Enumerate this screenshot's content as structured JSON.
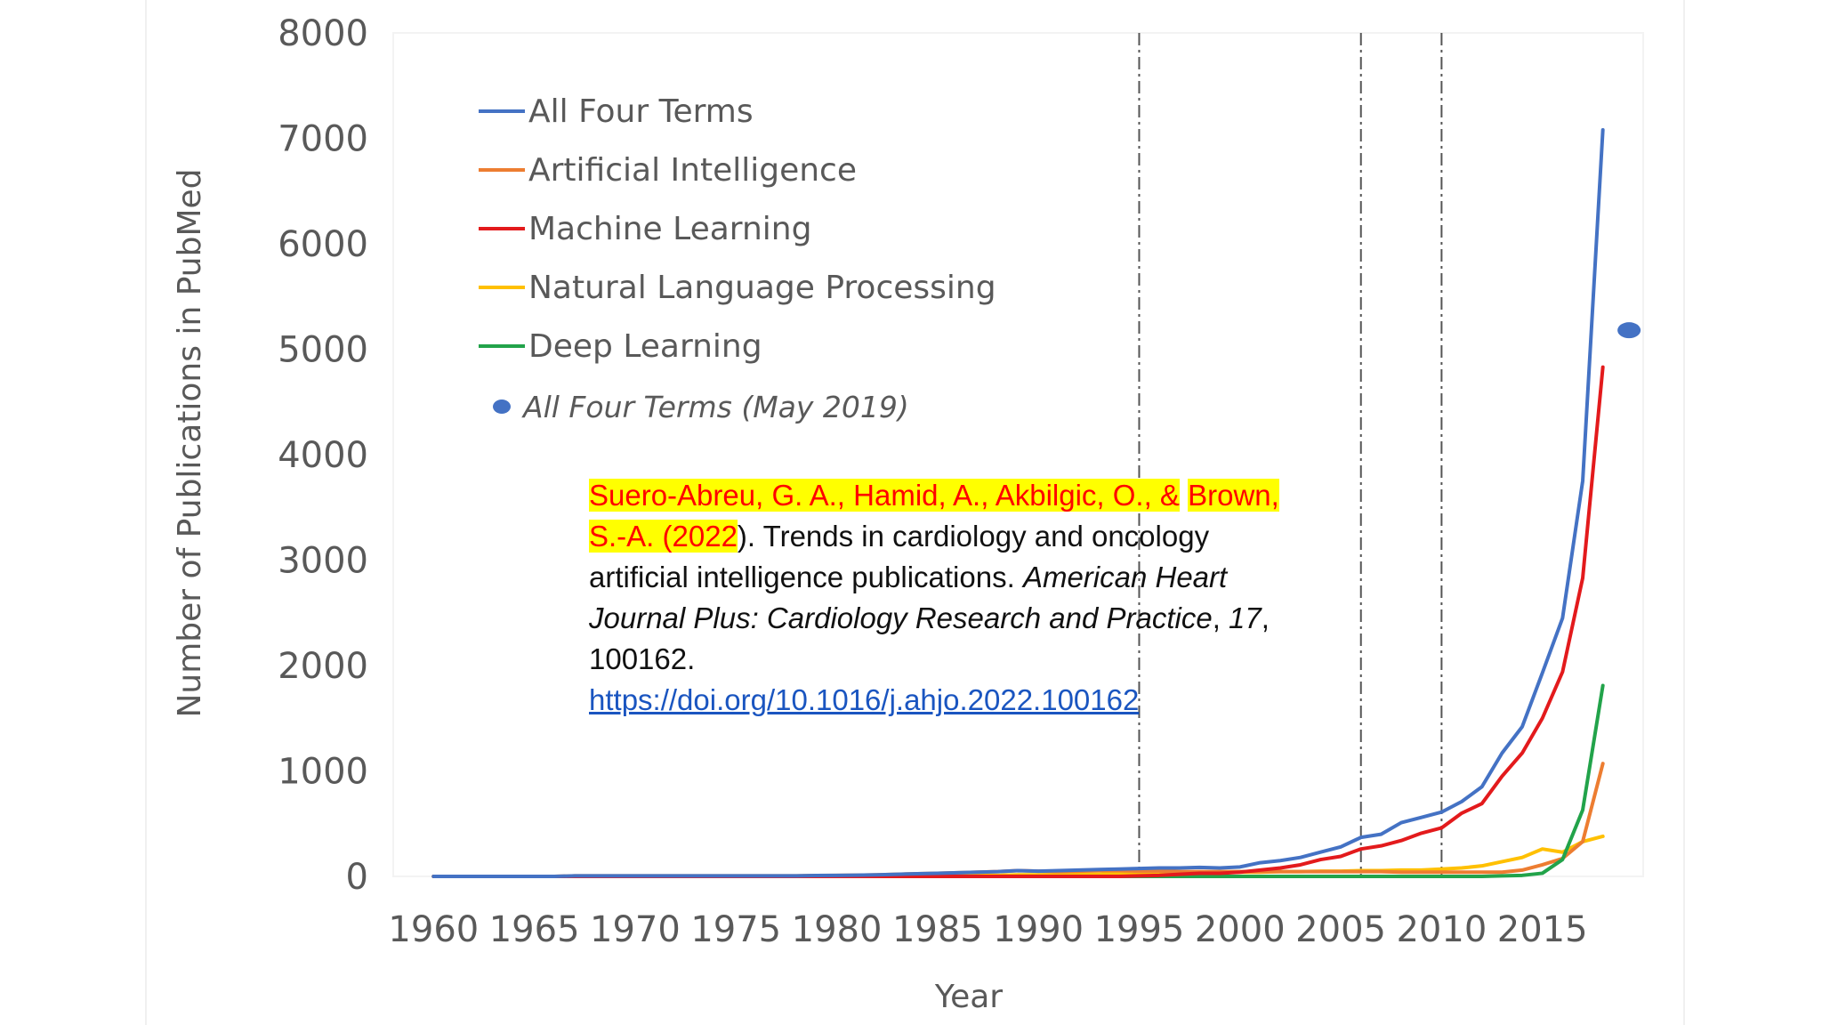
{
  "chart_data": {
    "type": "line",
    "xlabel": "Year",
    "ylabel": "Number of Publications in PubMed",
    "xlim": [
      1958,
      2020
    ],
    "ylim": [
      0,
      8000
    ],
    "x_ticks": [
      1960,
      1965,
      1970,
      1975,
      1980,
      1985,
      1990,
      1995,
      2000,
      2005,
      2010,
      2015
    ],
    "y_ticks": [
      0,
      1000,
      2000,
      3000,
      4000,
      5000,
      6000,
      7000,
      8000
    ],
    "grid": false,
    "legend_position": "top-left",
    "vertical_lines": [
      1995,
      2006,
      2010
    ],
    "colors": {
      "all_four": "#4472c4",
      "ai": "#ed7d31",
      "ml": "#e31a1c",
      "nlp": "#ffc000",
      "dl": "#22a34a"
    },
    "x": [
      1960,
      1961,
      1962,
      1963,
      1964,
      1965,
      1966,
      1967,
      1968,
      1969,
      1970,
      1971,
      1972,
      1973,
      1974,
      1975,
      1976,
      1977,
      1978,
      1979,
      1980,
      1981,
      1982,
      1983,
      1984,
      1985,
      1986,
      1987,
      1988,
      1989,
      1990,
      1991,
      1992,
      1993,
      1994,
      1995,
      1996,
      1997,
      1998,
      1999,
      2000,
      2001,
      2002,
      2003,
      2004,
      2005,
      2006,
      2007,
      2008,
      2009,
      2010,
      2011,
      2012,
      2013,
      2014,
      2015,
      2016,
      2017,
      2018
    ],
    "series": [
      {
        "name": "All Four Terms",
        "color_key": "all_four",
        "values": [
          0,
          0,
          0,
          0,
          0,
          0,
          0,
          5,
          5,
          5,
          5,
          5,
          5,
          5,
          5,
          5,
          5,
          5,
          5,
          8,
          10,
          12,
          15,
          20,
          25,
          30,
          35,
          40,
          45,
          55,
          50,
          55,
          60,
          65,
          70,
          75,
          80,
          80,
          85,
          80,
          90,
          130,
          150,
          180,
          230,
          280,
          370,
          400,
          510,
          560,
          610,
          710,
          850,
          1170,
          1420,
          1930,
          2450,
          3750,
          7080
        ]
      },
      {
        "name": "Artificial Intelligence",
        "color_key": "ai",
        "values": [
          0,
          0,
          0,
          0,
          0,
          0,
          0,
          5,
          5,
          5,
          5,
          5,
          5,
          5,
          5,
          5,
          5,
          5,
          5,
          8,
          10,
          12,
          15,
          20,
          25,
          30,
          35,
          40,
          45,
          55,
          50,
          45,
          50,
          55,
          55,
          50,
          50,
          45,
          45,
          45,
          45,
          45,
          45,
          45,
          45,
          45,
          45,
          45,
          40,
          40,
          40,
          40,
          40,
          40,
          60,
          110,
          170,
          330,
          1070
        ]
      },
      {
        "name": "Machine Learning",
        "color_key": "ml",
        "values": [
          0,
          0,
          0,
          0,
          0,
          0,
          0,
          0,
          0,
          0,
          0,
          0,
          0,
          0,
          0,
          0,
          0,
          0,
          0,
          0,
          0,
          0,
          0,
          0,
          0,
          0,
          0,
          0,
          0,
          0,
          0,
          0,
          0,
          0,
          0,
          5,
          10,
          20,
          30,
          30,
          40,
          60,
          80,
          110,
          160,
          190,
          260,
          290,
          340,
          410,
          460,
          600,
          690,
          950,
          1170,
          1500,
          1940,
          2830,
          4830
        ]
      },
      {
        "name": "Natural Language Processing",
        "color_key": "nlp",
        "values": [
          0,
          0,
          0,
          0,
          0,
          0,
          0,
          0,
          0,
          0,
          0,
          0,
          0,
          0,
          0,
          0,
          0,
          0,
          0,
          0,
          0,
          0,
          0,
          0,
          5,
          5,
          10,
          10,
          10,
          15,
          15,
          15,
          20,
          20,
          25,
          25,
          30,
          30,
          35,
          35,
          40,
          40,
          45,
          45,
          50,
          50,
          55,
          55,
          60,
          60,
          70,
          80,
          100,
          140,
          180,
          260,
          230,
          330,
          380
        ]
      },
      {
        "name": "Deep Learning",
        "color_key": "dl",
        "values": [
          0,
          0,
          0,
          0,
          0,
          0,
          0,
          0,
          0,
          0,
          0,
          0,
          0,
          0,
          0,
          0,
          0,
          0,
          0,
          0,
          0,
          0,
          0,
          0,
          0,
          0,
          0,
          0,
          0,
          0,
          0,
          0,
          0,
          0,
          0,
          0,
          0,
          0,
          0,
          0,
          0,
          0,
          0,
          0,
          0,
          0,
          0,
          0,
          0,
          0,
          0,
          0,
          0,
          5,
          10,
          30,
          160,
          630,
          1810
        ]
      }
    ],
    "point_series": {
      "name": "All Four Terms (May 2019)",
      "color_key": "all_four",
      "x": 2019.3,
      "y": 5180
    }
  },
  "citation": {
    "authors_highlighted_1": "Suero-Abreu, G. A., Hamid, A., Akbilgic, O., &",
    "authors_highlighted_2": "Brown, S.-A. (2022",
    "title_rest": "). Trends in cardiology and oncology artificial intelligence publications.",
    "journal": "American Heart Journal Plus: Cardiology Research and Practice",
    "comma_1": ", ",
    "volume": "17",
    "comma_2": ", ",
    "article_number": "100162.",
    "doi": "https://doi.org/10.1016/j.ahjo.2022.100162"
  }
}
